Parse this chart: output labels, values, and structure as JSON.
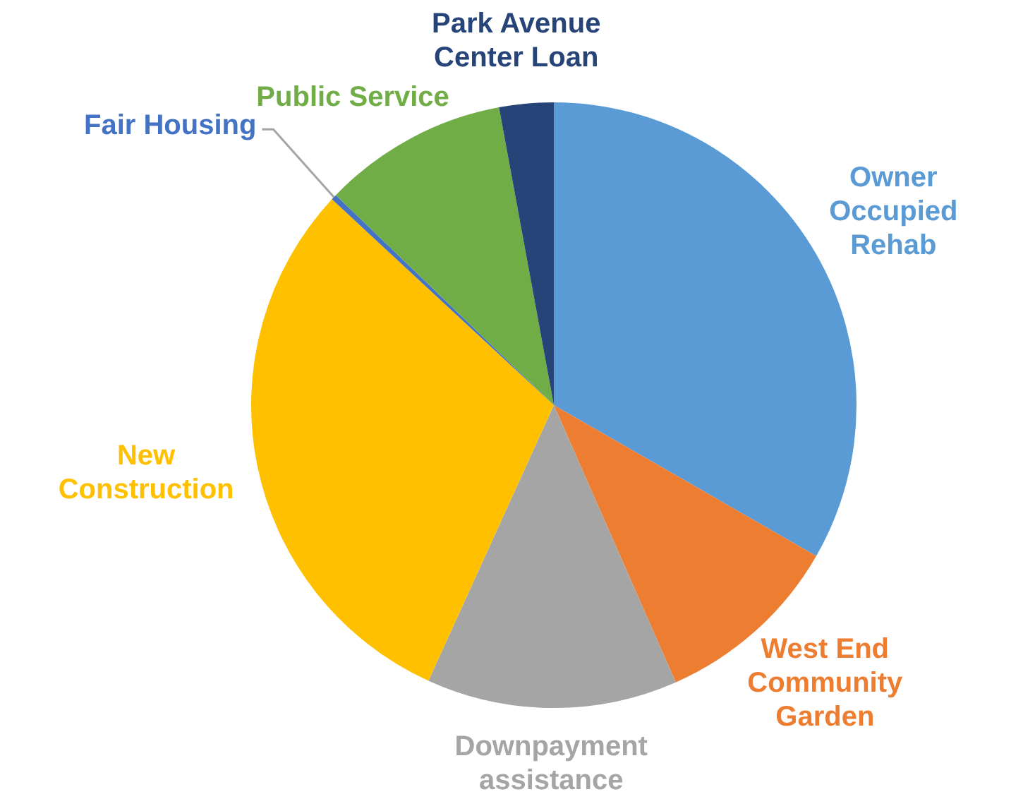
{
  "chart_data": {
    "type": "pie",
    "categories": [
      "Owner Occupied Rehab",
      "West End Community Garden",
      "Downpayment assistance",
      "New Construction",
      "Fair Housing",
      "Public Service",
      "Park Avenue Center Loan"
    ],
    "values": [
      33.3,
      10.1,
      13.4,
      30.1,
      0.3,
      9.9,
      2.9
    ],
    "colors": [
      "#5b9bd5",
      "#ed7d31",
      "#a5a5a5",
      "#ffc000",
      "#4472c4",
      "#70ad47",
      "#264478"
    ],
    "legend": false
  }
}
